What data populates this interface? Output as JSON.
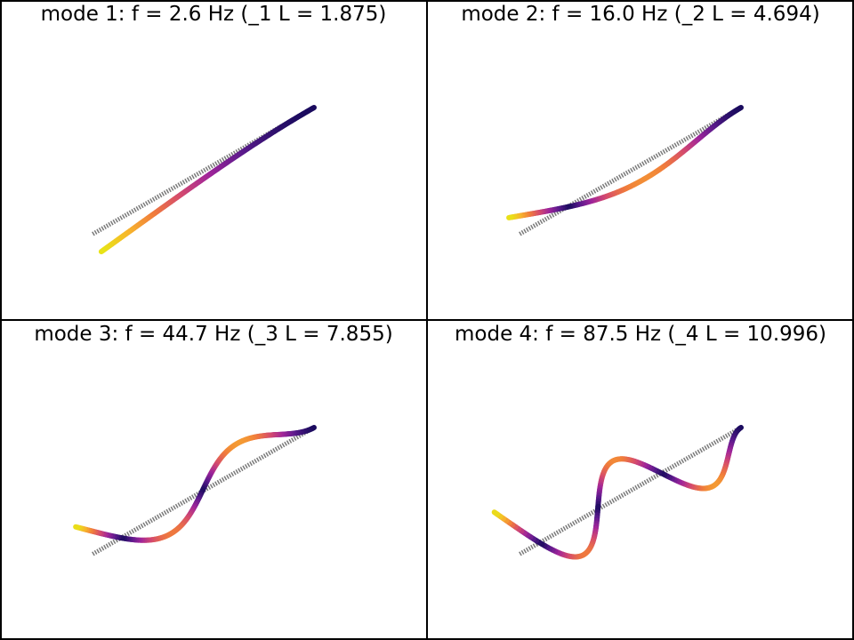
{
  "panels": [
    {
      "title": "mode 1: f = 2.6 Hz  (_1 L = 1.875)",
      "mode": 1
    },
    {
      "title": "mode 2: f = 16.0 Hz  (_2 L = 4.694)",
      "mode": 2
    },
    {
      "title": "mode 3: f = 44.7 Hz  (_3 L = 7.855)",
      "mode": 3
    },
    {
      "title": "mode 4: f = 87.5 Hz  (_4 L = 10.996)",
      "mode": 4
    }
  ],
  "colors": {
    "background": "#ffffff",
    "frame": "#000000",
    "undeformed": "#7a7a7a",
    "colormap": [
      "#1a0b5e",
      "#5a1a8c",
      "#a0259a",
      "#d44a6e",
      "#f07b3c",
      "#f7b52c",
      "#e8e416"
    ]
  }
}
